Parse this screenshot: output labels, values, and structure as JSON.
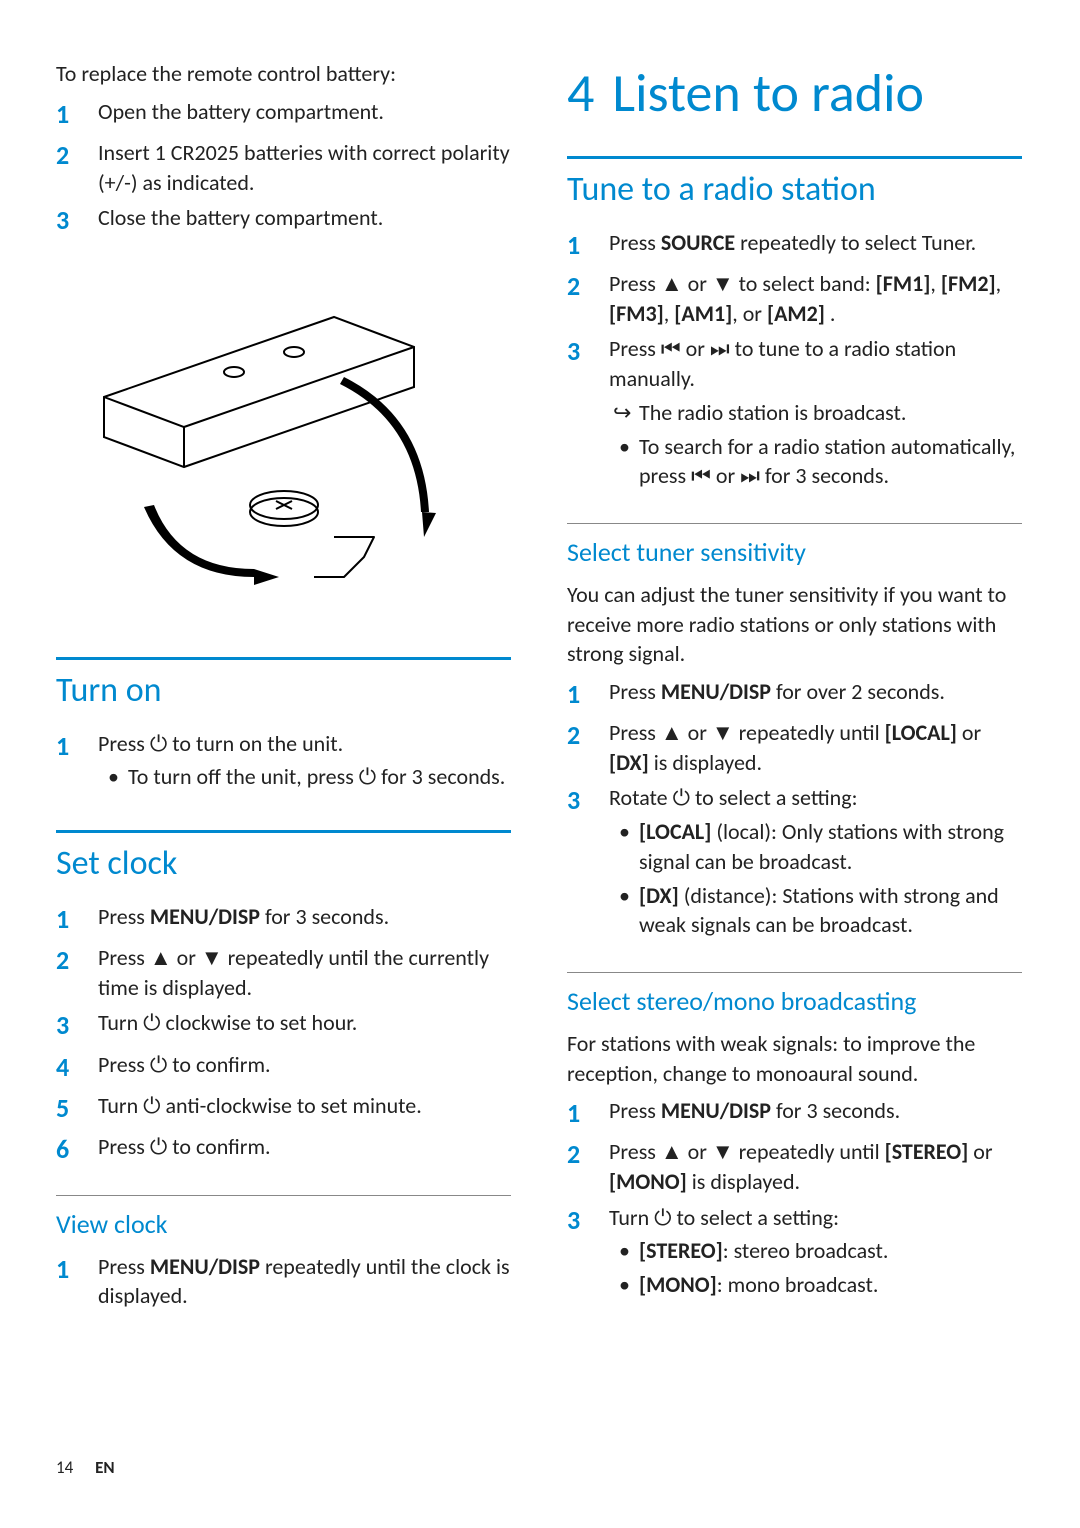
{
  "colors": {
    "accent": "#0089cf",
    "text": "#222222",
    "rule_light": "#888888",
    "bg": "#ffffff"
  },
  "footer": {
    "page": "14",
    "lang": "EN"
  },
  "left": {
    "battery_intro": "To replace the remote control battery:",
    "battery_steps": [
      "Open the battery compartment.",
      "Insert 1 CR2025 batteries with correct polarity (+/-) as indicated.",
      "Close the battery compartment."
    ],
    "turn_on_h": "Turn on",
    "turn_on_step": "Press ⏻ to turn on the unit.",
    "turn_on_sub": "To turn off the unit, press ⏻ for 3 seconds.",
    "set_clock_h": "Set clock",
    "set_clock_steps": [
      "Press <b>MENU/DISP</b> for 3 seconds.",
      "Press ▲ or ▼ repeatedly until the currently time is displayed.",
      "Turn ⏻ clockwise to set hour.",
      "Press ⏻ to confirm.",
      "Turn ⏻ anti-clockwise to set minute.",
      "Press ⏻ to confirm."
    ],
    "view_clock_h": "View clock",
    "view_clock_step": "Press <b>MENU/DISP</b> repeatedly until the clock is displayed."
  },
  "right": {
    "chapter_num": "4",
    "chapter_title": "Listen to radio",
    "tune_h": "Tune to a radio station",
    "tune_steps": {
      "s1": "Press <b>SOURCE</b> repeatedly to select Tuner.",
      "s2": "Press ▲ or ▼ to select band: <b>[FM1]</b>, <b>[FM2]</b>, <b>[FM3]</b>, <b>[AM1]</b>, or <b>[AM2]</b> .",
      "s3": "Press ⏮ or ⏭ to tune to a radio station manually.",
      "s3_result": "The radio station is broadcast.",
      "s3_sub": "To search for a radio station automatically, press ⏮ or ⏭ for 3 seconds."
    },
    "sens_h": "Select tuner sensitivity",
    "sens_intro": "You can adjust the tuner sensitivity if you want to receive more radio stations or only stations with strong signal.",
    "sens_steps": {
      "s1": "Press <b>MENU/DISP</b> for over 2 seconds.",
      "s2": "Press ▲ or ▼ repeatedly until <b>[LOCAL]</b> or <b>[DX]</b> is displayed.",
      "s3": "Rotate ⏻ to select a setting:",
      "s3_sub1": "<b>[LOCAL]</b> (local): Only stations with strong signal can be broadcast.",
      "s3_sub2": "<b>[DX]</b> (distance): Stations with strong and weak signals can be broadcast."
    },
    "stereo_h": "Select stereo/mono broadcasting",
    "stereo_intro": "For stations with weak signals: to improve the reception, change to monoaural sound.",
    "stereo_steps": {
      "s1": "Press <b>MENU/DISP</b> for 3 seconds.",
      "s2": "Press ▲ or ▼ repeatedly until <b>[STEREO]</b> or <b>[MONO]</b> is displayed.",
      "s3": "Turn ⏻ to select a setting:",
      "s3_sub1": "<b>[STEREO]</b>: stereo broadcast.",
      "s3_sub2": "<b>[MONO]</b>: mono broadcast."
    }
  }
}
